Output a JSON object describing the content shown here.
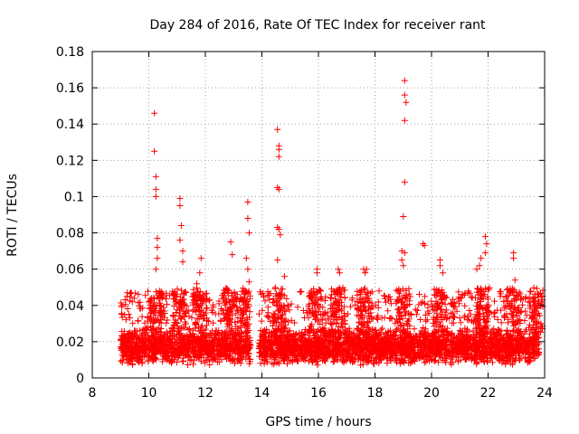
{
  "chart_data": {
    "type": "scatter",
    "title": "Day 284 of 2016, Rate Of TEC Index for receiver rant",
    "xlabel": "GPS time / hours",
    "ylabel": "ROTI / TECUs",
    "xlim": [
      8,
      24
    ],
    "ylim": [
      0,
      0.18
    ],
    "x_ticks": [
      8,
      10,
      12,
      14,
      16,
      18,
      20,
      22,
      24
    ],
    "y_ticks": [
      0,
      0.02,
      0.04,
      0.06,
      0.08,
      0.1,
      0.12,
      0.14,
      0.16,
      0.18
    ],
    "x_tick_labels": [
      "8",
      "10",
      "12",
      "14",
      "16",
      "18",
      "20",
      "22",
      "24"
    ],
    "y_tick_labels": [
      "0",
      "0.02",
      "0.04",
      "0.06",
      "0.08",
      "0.1",
      "0.12",
      "0.14",
      "0.16",
      "0.18"
    ],
    "grid": true,
    "marker": "+",
    "series": [
      {
        "name": "ROTI",
        "color": "#ff0000",
        "x_range": [
          9.0,
          23.8
        ],
        "gap": [
          13.6,
          13.9
        ],
        "baseline_band": [
          0.005,
          0.03
        ],
        "notable_points": [
          {
            "x": 9.05,
            "y": 0.04
          },
          {
            "x": 9.05,
            "y": 0.035
          },
          {
            "x": 10.2,
            "y": 0.146
          },
          {
            "x": 10.2,
            "y": 0.125
          },
          {
            "x": 10.25,
            "y": 0.111
          },
          {
            "x": 10.25,
            "y": 0.104
          },
          {
            "x": 10.25,
            "y": 0.1
          },
          {
            "x": 10.3,
            "y": 0.077
          },
          {
            "x": 10.3,
            "y": 0.072
          },
          {
            "x": 10.3,
            "y": 0.066
          },
          {
            "x": 10.25,
            "y": 0.06
          },
          {
            "x": 11.1,
            "y": 0.099
          },
          {
            "x": 11.1,
            "y": 0.095
          },
          {
            "x": 11.15,
            "y": 0.084
          },
          {
            "x": 11.1,
            "y": 0.076
          },
          {
            "x": 11.2,
            "y": 0.07
          },
          {
            "x": 11.2,
            "y": 0.064
          },
          {
            "x": 11.85,
            "y": 0.066
          },
          {
            "x": 11.8,
            "y": 0.058
          },
          {
            "x": 11.7,
            "y": 0.052
          },
          {
            "x": 12.9,
            "y": 0.075
          },
          {
            "x": 12.95,
            "y": 0.068
          },
          {
            "x": 13.5,
            "y": 0.097
          },
          {
            "x": 13.5,
            "y": 0.088
          },
          {
            "x": 13.55,
            "y": 0.08
          },
          {
            "x": 13.45,
            "y": 0.066
          },
          {
            "x": 13.5,
            "y": 0.06
          },
          {
            "x": 13.55,
            "y": 0.053
          },
          {
            "x": 14.55,
            "y": 0.137
          },
          {
            "x": 14.6,
            "y": 0.128
          },
          {
            "x": 14.6,
            "y": 0.126
          },
          {
            "x": 14.6,
            "y": 0.122
          },
          {
            "x": 14.55,
            "y": 0.105
          },
          {
            "x": 14.6,
            "y": 0.104
          },
          {
            "x": 14.55,
            "y": 0.083
          },
          {
            "x": 14.6,
            "y": 0.082
          },
          {
            "x": 14.65,
            "y": 0.079
          },
          {
            "x": 14.55,
            "y": 0.065
          },
          {
            "x": 14.8,
            "y": 0.056
          },
          {
            "x": 15.95,
            "y": 0.06
          },
          {
            "x": 15.95,
            "y": 0.058
          },
          {
            "x": 16.7,
            "y": 0.06
          },
          {
            "x": 16.75,
            "y": 0.058
          },
          {
            "x": 17.6,
            "y": 0.06
          },
          {
            "x": 17.7,
            "y": 0.06
          },
          {
            "x": 17.65,
            "y": 0.058
          },
          {
            "x": 19.05,
            "y": 0.164
          },
          {
            "x": 19.05,
            "y": 0.156
          },
          {
            "x": 19.1,
            "y": 0.152
          },
          {
            "x": 19.05,
            "y": 0.142
          },
          {
            "x": 19.05,
            "y": 0.108
          },
          {
            "x": 19.0,
            "y": 0.089
          },
          {
            "x": 18.95,
            "y": 0.07
          },
          {
            "x": 19.05,
            "y": 0.069
          },
          {
            "x": 18.95,
            "y": 0.065
          },
          {
            "x": 19.0,
            "y": 0.062
          },
          {
            "x": 19.7,
            "y": 0.074
          },
          {
            "x": 19.75,
            "y": 0.073
          },
          {
            "x": 20.3,
            "y": 0.065
          },
          {
            "x": 20.3,
            "y": 0.062
          },
          {
            "x": 20.4,
            "y": 0.058
          },
          {
            "x": 21.9,
            "y": 0.078
          },
          {
            "x": 21.95,
            "y": 0.074
          },
          {
            "x": 21.9,
            "y": 0.069
          },
          {
            "x": 21.75,
            "y": 0.066
          },
          {
            "x": 21.6,
            "y": 0.06
          },
          {
            "x": 21.7,
            "y": 0.062
          },
          {
            "x": 22.9,
            "y": 0.069
          },
          {
            "x": 22.9,
            "y": 0.066
          },
          {
            "x": 22.95,
            "y": 0.054
          },
          {
            "x": 23.8,
            "y": 0.042
          }
        ]
      }
    ]
  }
}
